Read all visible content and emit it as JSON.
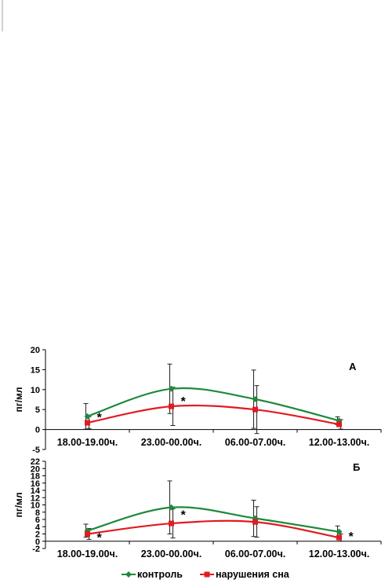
{
  "chart_data": [
    {
      "type": "line",
      "panel_label": "А",
      "categories": [
        "18.00-19.00ч.",
        "23.00-00.00ч.",
        "06.00-07.00ч.",
        "12.00-13.00ч."
      ],
      "ylabel": "пг/мл",
      "ylim": [
        -5,
        20
      ],
      "yticks": [
        "-5",
        "0",
        "5",
        "10",
        "15",
        "20"
      ],
      "smooth": true,
      "series": [
        {
          "name": "контроль",
          "color": "#1e8a3c",
          "marker": "diamond",
          "values": [
            3.3,
            10.2,
            7.6,
            2.2
          ],
          "err": [
            3.2,
            6.2,
            7.3,
            1.0
          ]
        },
        {
          "name": "нарушения сна",
          "color": "#e11b22",
          "marker": "square",
          "values": [
            1.7,
            5.8,
            5.0,
            1.3
          ],
          "err": [
            1.5,
            4.8,
            6.0,
            1.2
          ]
        }
      ],
      "annotations": [
        {
          "text": "*",
          "category": 0,
          "y": 3.6
        },
        {
          "text": "*",
          "category": 1,
          "y": 7.6
        }
      ]
    },
    {
      "type": "line",
      "panel_label": "Б",
      "categories": [
        "18.00-19.00ч.",
        "23.00-00.00ч.",
        "06.00-07.00ч.",
        "12.00-13.00ч."
      ],
      "ylabel": "пг/мл",
      "ylim": [
        -2,
        22
      ],
      "yticks": [
        "-2",
        "0",
        "2",
        "4",
        "6",
        "8",
        "10",
        "12",
        "14",
        "16",
        "18",
        "20",
        "22"
      ],
      "smooth": true,
      "series": [
        {
          "name": "контроль",
          "color": "#1e8a3c",
          "marker": "diamond",
          "values": [
            2.9,
            9.3,
            6.3,
            2.6
          ],
          "err": [
            1.8,
            7.3,
            5.0,
            1.6
          ]
        },
        {
          "name": "нарушения сна",
          "color": "#e11b22",
          "marker": "square",
          "values": [
            2.0,
            4.9,
            5.3,
            1.0
          ],
          "err": [
            1.5,
            4.0,
            4.2,
            1.0
          ]
        }
      ],
      "annotations": [
        {
          "text": "*",
          "category": 0,
          "y": 1.6
        },
        {
          "text": "*",
          "category": 1,
          "y": 7.8
        },
        {
          "text": "*",
          "category": 3,
          "y": 1.9
        }
      ]
    }
  ],
  "legend": {
    "items": [
      {
        "label": "контроль",
        "color": "#1e8a3c",
        "marker": "diamond"
      },
      {
        "label": "нарушения сна",
        "color": "#e11b22",
        "marker": "square"
      }
    ]
  }
}
